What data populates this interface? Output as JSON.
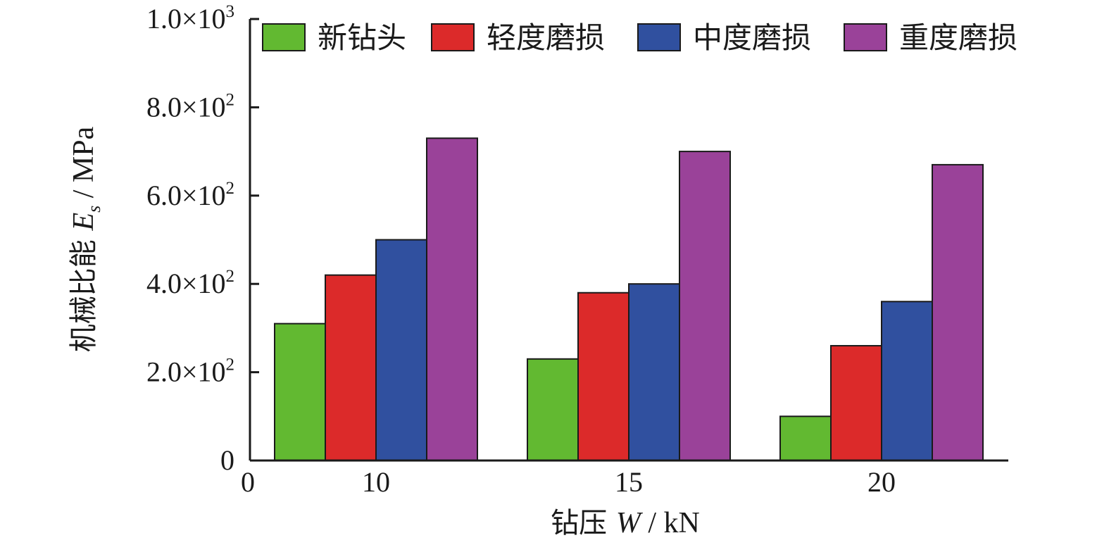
{
  "chart_data": {
    "type": "bar",
    "categories": [
      "10",
      "15",
      "20"
    ],
    "series": [
      {
        "name": "新钻头",
        "color": "#62b931",
        "values": [
          310,
          230,
          100
        ]
      },
      {
        "name": "轻度磨损",
        "color": "#dc2a2a",
        "values": [
          420,
          380,
          260
        ]
      },
      {
        "name": "中度磨损",
        "color": "#30509f",
        "values": [
          500,
          400,
          360
        ]
      },
      {
        "name": "重度磨损",
        "color": "#9a4299",
        "values": [
          730,
          700,
          670
        ]
      }
    ],
    "ylim": [
      0,
      1000
    ],
    "yticks": [
      {
        "value": 0,
        "mantissa": "0",
        "exponent": ""
      },
      {
        "value": 200,
        "mantissa": "2.0×10",
        "exponent": "2"
      },
      {
        "value": 400,
        "mantissa": "4.0×10",
        "exponent": "2"
      },
      {
        "value": 600,
        "mantissa": "6.0×10",
        "exponent": "2"
      },
      {
        "value": 800,
        "mantissa": "8.0×10",
        "exponent": "2"
      },
      {
        "value": 1000,
        "mantissa": "1.0×10",
        "exponent": "3"
      }
    ],
    "x_origin_label": "0",
    "xlabel": {
      "prefix": "钻压 ",
      "symbol": "W",
      "unit": " / kN"
    },
    "ylabel": {
      "prefix": "机械比能 ",
      "symbol": "E",
      "subscript": "s",
      "unit": " / MPa"
    },
    "legend_position": "top",
    "grid": false
  }
}
